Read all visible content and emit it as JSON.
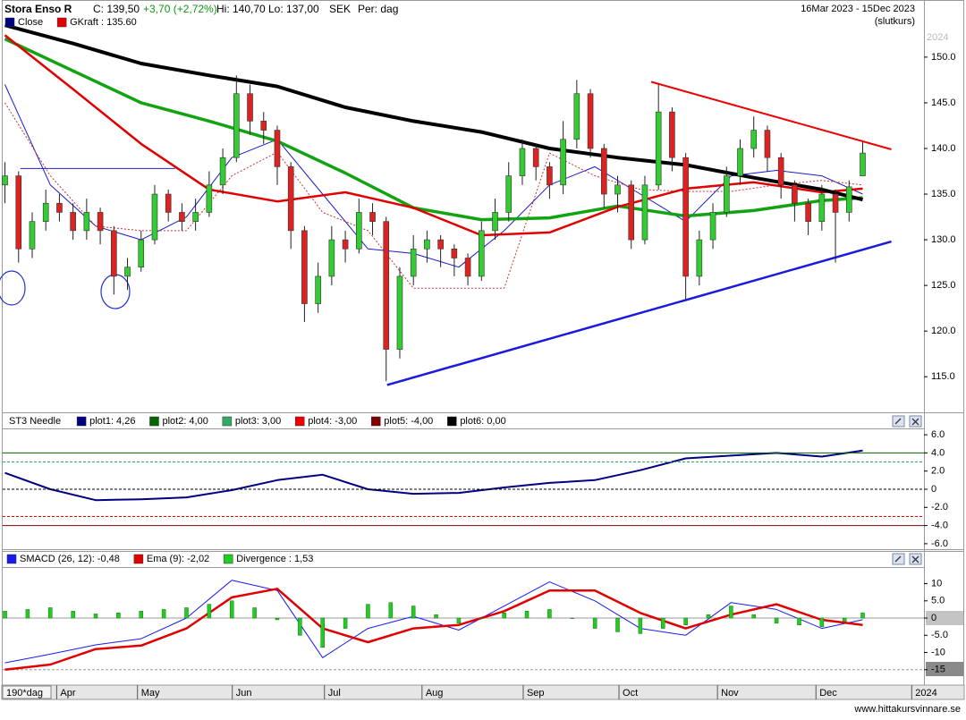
{
  "footer": "www.hittakursvinnare.se",
  "chart_data": [
    {
      "type": "candlestick",
      "title": "Stora Enso R",
      "quote": {
        "close": "C: 139,50",
        "change": "+3,70 (+2,72%)",
        "high": "Hi: 140,70",
        "low": "Lo: 137,00",
        "currency": "SEK",
        "period": "Per: dag"
      },
      "subtitle": "16Mar 2023 - 15Dec 2023",
      "note": "(slutkurs)",
      "watermark": "2024",
      "xlim": [
        -0.5,
        202.5
      ],
      "ylim": [
        111.2,
        154.3
      ],
      "yticks": [
        {
          "value": 150,
          "label": "150.0"
        },
        {
          "value": 145,
          "label": "145.0"
        },
        {
          "value": 140,
          "label": "140.0"
        },
        {
          "value": 135,
          "label": "135.0"
        },
        {
          "value": 130,
          "label": "130.0"
        },
        {
          "value": 125,
          "label": "125.0"
        },
        {
          "value": 120,
          "label": "120.0"
        },
        {
          "value": 115,
          "label": "115.0"
        }
      ],
      "grid": false,
      "candles": {
        "name": "Close",
        "color": "#000080",
        "up_color": "#33cc33",
        "down_color": "#dd2222",
        "x": [
          0,
          3,
          6,
          9,
          12,
          15,
          18,
          21,
          24,
          27,
          30,
          33,
          36,
          39,
          42,
          45,
          48,
          51,
          54,
          57,
          60,
          63,
          66,
          69,
          72,
          75,
          78,
          81,
          84,
          87,
          90,
          93,
          96,
          99,
          102,
          105,
          108,
          111,
          114,
          117,
          120,
          123,
          126,
          129,
          132,
          135,
          138,
          141,
          144,
          147,
          150,
          153,
          156,
          159,
          162,
          165,
          168,
          171,
          174,
          177,
          180,
          183,
          186,
          189
        ],
        "open": [
          136,
          137,
          129,
          132,
          134,
          133,
          131,
          133,
          131,
          126,
          127,
          130,
          135,
          133,
          132,
          133,
          136,
          139,
          146,
          143,
          142,
          138,
          131,
          123,
          126,
          130,
          129,
          133,
          132,
          118,
          126,
          129,
          130,
          129,
          128,
          126,
          131,
          133,
          137,
          140,
          138,
          136,
          141,
          146,
          140,
          135,
          136,
          130,
          136,
          144,
          139,
          126,
          130,
          133,
          137,
          140,
          142,
          139,
          136,
          134,
          132,
          135,
          133,
          137
        ],
        "high": [
          138.5,
          137.5,
          133,
          135.5,
          135,
          134,
          134.5,
          133.5,
          131.5,
          128,
          131,
          136,
          135.5,
          134,
          134.5,
          137.5,
          140,
          148,
          147,
          144,
          142.5,
          138.5,
          131.5,
          127.5,
          131.5,
          131,
          134.5,
          134,
          132.5,
          127,
          130.5,
          131,
          130.5,
          129.5,
          128.5,
          132,
          134.5,
          138.5,
          141,
          140.5,
          138.5,
          143,
          147.5,
          146.5,
          140.5,
          137,
          136.5,
          137,
          147,
          144.5,
          139.5,
          131,
          134,
          138,
          141,
          143.5,
          142.5,
          139.5,
          136.5,
          134.5,
          136,
          135.5,
          136.5,
          140.7
        ],
        "low": [
          134,
          127.5,
          128,
          131,
          132,
          130,
          130,
          129.5,
          124,
          124.5,
          126.5,
          129.5,
          132,
          131,
          131,
          132.5,
          135,
          138.5,
          141.5,
          140.5,
          136,
          129,
          121,
          122,
          125,
          127.5,
          128.5,
          130.5,
          114.5,
          117,
          125,
          127.5,
          127,
          126,
          125,
          125.5,
          130,
          132,
          136,
          136.5,
          134.5,
          135,
          140,
          139,
          133.5,
          133,
          129,
          129.5,
          135.5,
          137.5,
          123.5,
          125,
          129,
          132.5,
          136,
          139,
          137.5,
          134.5,
          132,
          130.5,
          131,
          127.5,
          132,
          137
        ],
        "close": [
          137,
          129,
          132,
          134,
          133,
          131,
          133,
          131,
          126,
          127,
          130,
          135,
          133,
          132,
          133,
          136,
          139,
          146,
          143,
          142,
          138,
          131,
          123,
          126,
          130,
          129,
          133,
          132,
          118,
          126,
          129,
          130,
          129,
          128,
          126,
          131,
          133,
          137,
          140,
          138,
          136,
          141,
          146,
          140,
          135,
          136,
          130,
          136,
          144,
          139,
          126,
          130,
          133,
          137,
          140,
          142,
          139,
          136,
          134,
          132,
          135,
          133,
          135.8,
          139.5
        ]
      },
      "series": [
        {
          "color": "#1a1acc",
          "width": 1,
          "x": [
            0,
            10,
            20,
            30,
            40,
            50,
            60,
            70,
            80,
            90,
            100,
            110,
            120,
            130,
            140,
            150,
            160,
            170,
            180,
            189
          ],
          "values": [
            147,
            136,
            131.5,
            130,
            132.5,
            139,
            141,
            135,
            129,
            128.5,
            127,
            131,
            136,
            138,
            135,
            132,
            137,
            137.6,
            137,
            135
          ]
        },
        {
          "color": "#cc3333",
          "width": 1,
          "dash": true,
          "x": [
            0,
            10,
            20,
            30,
            40,
            50,
            60,
            70,
            80,
            90,
            100,
            110,
            120,
            130,
            140,
            150,
            160,
            170,
            180,
            189
          ],
          "values": [
            145,
            137,
            131.5,
            131,
            131,
            137,
            139.6,
            133,
            131,
            124.7,
            124.7,
            124.7,
            139.5,
            137,
            135.5,
            135.3,
            135.3,
            136,
            136.5,
            136
          ]
        },
        {
          "color": "#11a311",
          "width": 3.5,
          "x": [
            0,
            15,
            30,
            45,
            60,
            75,
            90,
            105,
            120,
            135,
            150,
            165,
            180,
            189
          ],
          "values": [
            152,
            148.5,
            145,
            143,
            140.8,
            137.3,
            133.5,
            132.2,
            132.4,
            133.7,
            132.6,
            133.2,
            134.3,
            134.6
          ]
        },
        {
          "name": "GKraft : 135.60",
          "color": "#e00000",
          "width": 2.5,
          "x": [
            0,
            15,
            30,
            45,
            60,
            75,
            90,
            105,
            120,
            135,
            150,
            165,
            180,
            189
          ],
          "values": [
            152.4,
            146.5,
            140.5,
            135.5,
            134.2,
            135.2,
            133.5,
            130.5,
            130.8,
            133.6,
            135.6,
            136.3,
            135.2,
            135.6
          ]
        },
        {
          "color": "#000000",
          "width": 4,
          "x": [
            0,
            15,
            30,
            45,
            60,
            75,
            90,
            105,
            120,
            135,
            150,
            165,
            180,
            189
          ],
          "values": [
            153.5,
            151.5,
            149.3,
            148,
            146.8,
            144.5,
            143,
            141.8,
            140,
            139,
            138.2,
            136.8,
            135.5,
            134.4
          ]
        },
        {
          "color": "#ee0000",
          "width": 2,
          "x": [
            142.4,
            195.3
          ],
          "values": [
            147.3,
            139.9
          ]
        },
        {
          "color": "#1a1add",
          "width": 2.5,
          "x": [
            84.2,
            195.3
          ],
          "values": [
            114.1,
            129.8
          ]
        },
        {
          "color": "#2222cc",
          "width": 1,
          "x": [
            3.4,
            37.5
          ],
          "values": [
            137.8,
            137.8
          ]
        }
      ]
    },
    {
      "type": "line",
      "title": "ST3 Needle",
      "xlim": [
        -0.5,
        202.5
      ],
      "ylim": [
        -6.6,
        6.6
      ],
      "yticks": [
        {
          "value": 6,
          "label": "6.0"
        },
        {
          "value": 4,
          "label": "4.0"
        },
        {
          "value": 2,
          "label": "2.0"
        },
        0,
        {
          "value": -2,
          "label": "-2.0"
        },
        {
          "value": -4,
          "label": "-4.0"
        },
        {
          "value": -6,
          "label": "-6.0"
        }
      ],
      "series": [
        {
          "name": "plot1: 4,26",
          "color": "#000080",
          "width": 2,
          "x": [
            0,
            10,
            20,
            30,
            40,
            50,
            60,
            70,
            80,
            90,
            100,
            110,
            120,
            130,
            140,
            150,
            160,
            170,
            180,
            189
          ],
          "values": [
            1.8,
            0,
            -1.2,
            -1.1,
            -0.9,
            -0.1,
            1,
            1.6,
            0,
            -0.5,
            -0.4,
            0.2,
            0.7,
            1,
            2.1,
            3.4,
            3.7,
            4,
            3.6,
            4.26
          ]
        },
        {
          "name": "plot2: 4,00",
          "color": "#006600",
          "value": 4
        },
        {
          "name": "plot3: 3,00",
          "color": "#33aa66",
          "value": 3,
          "dash": true
        },
        {
          "name": "plot4: -3,00",
          "color": "#ee0000",
          "value": -3,
          "dash": true
        },
        {
          "name": "plot5: -4,00",
          "color": "#800000",
          "value": -4
        },
        {
          "name": "plot6: 0,00",
          "color": "#000000",
          "value": 0,
          "dash": true
        }
      ]
    },
    {
      "type": "line",
      "period_label": "190*dag",
      "xlim": [
        -0.5,
        202.5
      ],
      "ylim": [
        -20,
        14.3
      ],
      "yticks": [
        10,
        {
          "value": 5,
          "label": "5.0"
        },
        0,
        {
          "value": -5,
          "label": "-5.0"
        },
        -10,
        -15
      ],
      "xticks": [
        {
          "value": 11.4,
          "label": "Apr"
        },
        {
          "value": 29.2,
          "label": "May"
        },
        {
          "value": 50.1,
          "label": "Jun"
        },
        {
          "value": 70.4,
          "label": "Jul"
        },
        {
          "value": 91.9,
          "label": "Aug"
        },
        {
          "value": 114.2,
          "label": "Sep"
        },
        {
          "value": 135.3,
          "label": "Oct"
        },
        {
          "value": 157,
          "label": "Nov"
        },
        {
          "value": 178.7,
          "label": "Dec"
        },
        {
          "value": 199.8,
          "label": "2024"
        }
      ],
      "series": [
        {
          "color": "#999999",
          "value": 0
        },
        {
          "color": "#999999",
          "value": -15,
          "dash": true
        },
        {
          "name": "SMACD (26, 12): -0,48",
          "color": "#1a1aee",
          "width": 1,
          "x": [
            0,
            10,
            20,
            30,
            40,
            50,
            60,
            70,
            80,
            90,
            100,
            110,
            120,
            130,
            140,
            150,
            160,
            170,
            180,
            189
          ],
          "values": [
            -13,
            -10.5,
            -7.8,
            -6,
            0,
            11,
            8,
            -11.5,
            -3,
            0.5,
            -3.5,
            3.5,
            10.5,
            5,
            -3,
            -5,
            4.5,
            2.5,
            -3,
            -0.48
          ]
        },
        {
          "name": "Ema (9): -2,02",
          "color": "#e00000",
          "width": 2.5,
          "x": [
            0,
            10,
            20,
            30,
            40,
            50,
            60,
            70,
            80,
            90,
            100,
            110,
            120,
            130,
            140,
            150,
            160,
            170,
            180,
            189
          ],
          "values": [
            -15,
            -13.5,
            -9,
            -8,
            -3,
            6,
            8.5,
            -3,
            -7,
            -3,
            -2,
            2,
            8,
            8,
            1.5,
            -3,
            1,
            4,
            -0.5,
            -2.02
          ]
        },
        {
          "name": "Divergence : 1,53",
          "color": "#22cc22",
          "kind": "bar",
          "x": [
            0,
            5,
            10,
            15,
            20,
            25,
            30,
            35,
            40,
            45,
            50,
            55,
            60,
            65,
            70,
            75,
            80,
            85,
            90,
            95,
            100,
            105,
            110,
            115,
            120,
            125,
            130,
            135,
            140,
            145,
            150,
            155,
            160,
            165,
            170,
            175,
            180,
            185,
            189
          ],
          "values": [
            2,
            2.5,
            3,
            2,
            1.2,
            1.5,
            2,
            2.5,
            3,
            4,
            5,
            3,
            -0.5,
            -5,
            -8.5,
            -3,
            4,
            4.5,
            3.5,
            1,
            -1.5,
            0,
            1.5,
            2,
            2.5,
            0,
            -3,
            -4,
            -4.5,
            -3,
            -2,
            1,
            3.5,
            1,
            -1.5,
            -2,
            -2.5,
            -1,
            1.53
          ]
        }
      ]
    }
  ]
}
